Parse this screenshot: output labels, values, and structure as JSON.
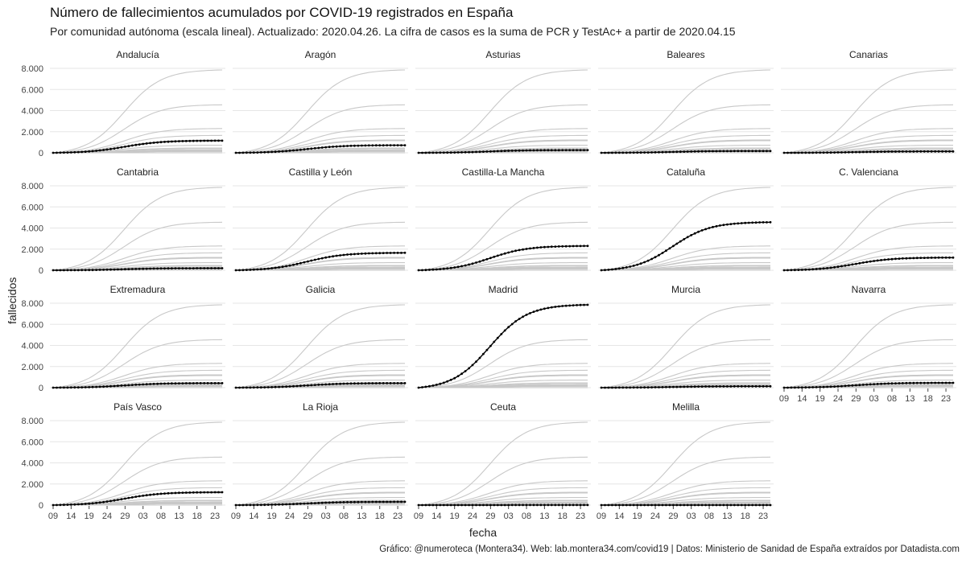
{
  "title": "Número de fallecimientos acumulados por COVID-19 registrados en España",
  "subtitle": "Por comunidad autónoma (escala lineal). Actualizado: 2020.04.26. La cifra de casos es la suma de PCR y TestAc+ a partir de 2020.04.15",
  "caption": "Gráfico: @numeroteca (Montera34). Web: lab.montera34.com/covid19 | Datos: Ministerio de Sanidad de España extraídos por Datadista.com",
  "colors": {
    "highlight": "#000000",
    "background_lines": "#c8c8c8",
    "grid": "#e6e6e6"
  },
  "chart_data": {
    "type": "line",
    "xlabel": "fecha",
    "ylabel": "fallecidos",
    "x_tick_labels": [
      "09",
      "14",
      "19",
      "24",
      "29",
      "03",
      "08",
      "13",
      "18",
      "23"
    ],
    "x_ticks_day_index": [
      0,
      5,
      10,
      15,
      20,
      25,
      30,
      35,
      40,
      45
    ],
    "x_start_date": "2020-03-09",
    "x_end_date": "2020-04-26",
    "ylim": [
      0,
      8000
    ],
    "y_ticks": [
      0,
      2000,
      4000,
      6000,
      8000
    ],
    "y_tick_labels": [
      "0",
      "2.000",
      "4.000",
      "6.000",
      "8.000"
    ],
    "grid": true,
    "legend": "none",
    "facets": [
      {
        "name": "Andalucía",
        "final": 1150
      },
      {
        "name": "Aragón",
        "final": 720
      },
      {
        "name": "Asturias",
        "final": 260
      },
      {
        "name": "Baleares",
        "final": 170
      },
      {
        "name": "Canarias",
        "final": 130
      },
      {
        "name": "Cantabria",
        "final": 190
      },
      {
        "name": "Castilla y León",
        "final": 1650
      },
      {
        "name": "Castilla-La Mancha",
        "final": 2300
      },
      {
        "name": "Cataluña",
        "final": 4550
      },
      {
        "name": "C. Valenciana",
        "final": 1200
      },
      {
        "name": "Extremadura",
        "final": 430
      },
      {
        "name": "Galicia",
        "final": 430
      },
      {
        "name": "Madrid",
        "final": 7850
      },
      {
        "name": "Murcia",
        "final": 130
      },
      {
        "name": "Navarra",
        "final": 460
      },
      {
        "name": "País Vasco",
        "final": 1220
      },
      {
        "name": "La Rioja",
        "final": 310
      },
      {
        "name": "Ceuta",
        "final": 5
      },
      {
        "name": "Melilla",
        "final": 2
      }
    ]
  }
}
